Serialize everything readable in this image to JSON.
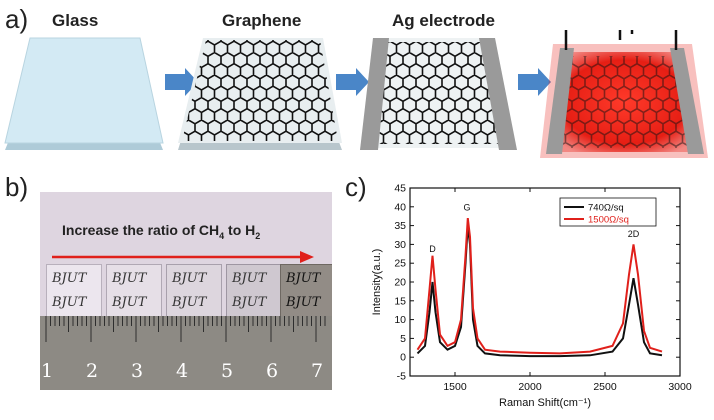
{
  "panel_labels": {
    "a": "a)",
    "b": "b)",
    "c": "c)"
  },
  "steps": [
    {
      "title": "Glass"
    },
    {
      "title": "Graphene"
    },
    {
      "title": "Ag electrode"
    },
    {
      "title": ""
    }
  ],
  "photo": {
    "caption_prefix": "Increase the ratio of CH",
    "caption_sub1": "4",
    "caption_mid": " to H",
    "caption_sub2": "2",
    "sample_text": "BJUT",
    "ruler_numbers": [
      "1",
      "2",
      "3",
      "4",
      "5",
      "6",
      "7"
    ]
  },
  "colors": {
    "glass": "#cfe8f3",
    "arrow": "#4a86c8",
    "electrode": "#9a9a9a",
    "glow": "#e0201b",
    "series1": "#111111",
    "series2": "#e0201b"
  },
  "chart_data": {
    "type": "line",
    "xlabel": "Raman Shift(cm⁻¹)",
    "ylabel": "Intensity(a.u.)",
    "xlim": [
      1200,
      3000
    ],
    "ylim": [
      -5,
      45
    ],
    "xticks": [
      1500,
      2000,
      2500,
      3000
    ],
    "yticks": [
      -5,
      0,
      5,
      10,
      15,
      20,
      25,
      30,
      35,
      40,
      45
    ],
    "legend_position": "top-right",
    "annotations": [
      {
        "text": "D",
        "x": 1350,
        "y": 28
      },
      {
        "text": "G",
        "x": 1580,
        "y": 39
      },
      {
        "text": "2D",
        "x": 2690,
        "y": 32
      }
    ],
    "series": [
      {
        "name": "740Ω/sq",
        "color": "#111111",
        "x": [
          1250,
          1300,
          1330,
          1350,
          1370,
          1400,
          1450,
          1500,
          1540,
          1570,
          1585,
          1600,
          1620,
          1650,
          1700,
          1800,
          2000,
          2200,
          2400,
          2550,
          2620,
          2660,
          2690,
          2720,
          2760,
          2800,
          2880
        ],
        "y": [
          1,
          3,
          12,
          20,
          12,
          4,
          2,
          3,
          8,
          25,
          35,
          30,
          10,
          3,
          1,
          0.5,
          0.3,
          0.3,
          0.5,
          1.5,
          5,
          14,
          21,
          14,
          4,
          1,
          0.5
        ]
      },
      {
        "name": "1500Ω/sq",
        "color": "#e0201b",
        "x": [
          1250,
          1300,
          1330,
          1350,
          1370,
          1400,
          1450,
          1500,
          1540,
          1570,
          1585,
          1600,
          1620,
          1650,
          1700,
          1800,
          2000,
          2200,
          2400,
          2550,
          2620,
          2660,
          2690,
          2720,
          2760,
          2800,
          2880
        ],
        "y": [
          2,
          5,
          18,
          27,
          18,
          6,
          3,
          4,
          10,
          27,
          37,
          32,
          13,
          5,
          2,
          1.5,
          1.2,
          1,
          1.5,
          3,
          9,
          22,
          30,
          22,
          7,
          2.5,
          1.5
        ]
      }
    ]
  }
}
